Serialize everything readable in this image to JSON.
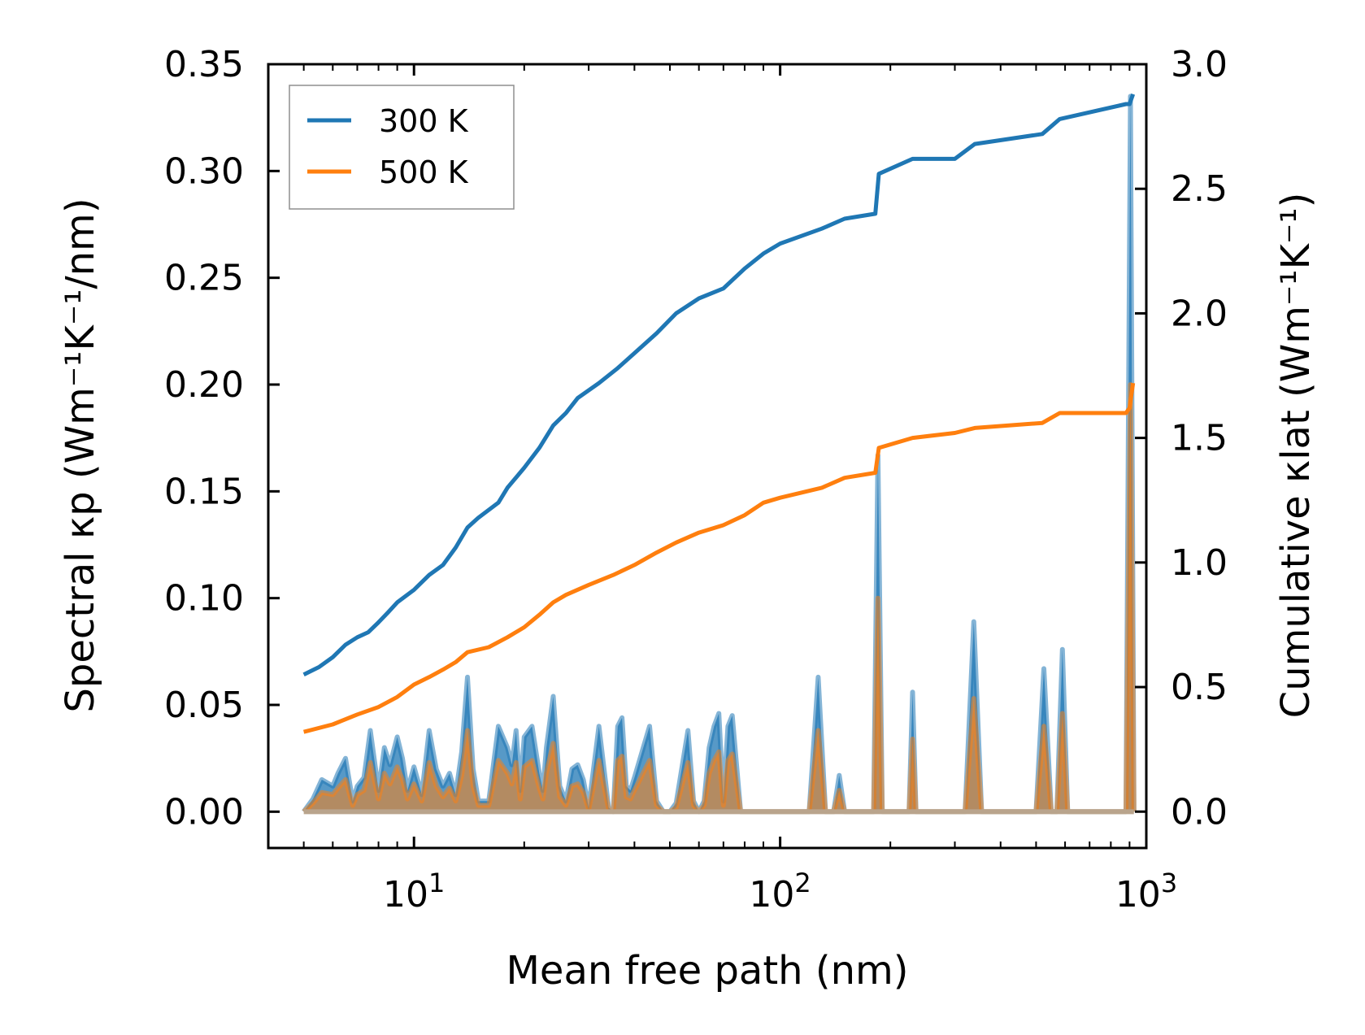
{
  "chart_data": {
    "type": "line",
    "xlabel": "Mean free path (nm)",
    "ylabel_left": "Spectral κp (Wm⁻¹K⁻¹/nm)",
    "ylabel_right": "Cumulative κlat (Wm⁻¹K⁻¹)",
    "x_scale": "log",
    "xlim": [
      4.0,
      1000
    ],
    "ylim_left": [
      -0.017,
      0.35
    ],
    "ylim_right": [
      -0.146,
      3.0
    ],
    "x_ticks": [
      10,
      100,
      1000
    ],
    "x_tick_labels": [
      {
        "base": "10",
        "exp": "1"
      },
      {
        "base": "10",
        "exp": "2"
      },
      {
        "base": "10",
        "exp": "3"
      }
    ],
    "y_ticks_left": [
      "0.00",
      "0.05",
      "0.10",
      "0.15",
      "0.20",
      "0.25",
      "0.30",
      "0.35"
    ],
    "y_ticks_right": [
      "0.0",
      "0.5",
      "1.0",
      "1.5",
      "2.0",
      "2.5",
      "3.0"
    ],
    "legend": {
      "position": "top-left",
      "entries": [
        {
          "label": "300 K",
          "color": "#1f77b4"
        },
        {
          "label": "500 K",
          "color": "#ff7f0e"
        }
      ]
    },
    "cumulative_series": [
      {
        "name": "300 K",
        "color": "#1f77b4",
        "axis": "right",
        "x": [
          5.0,
          5.5,
          6.0,
          6.5,
          7.0,
          7.5,
          8.0,
          8.5,
          9.0,
          10.0,
          11.0,
          12.0,
          13.0,
          14.0,
          15.0,
          17.0,
          18.0,
          20.0,
          22.0,
          24.0,
          26.0,
          28.0,
          32.0,
          36.0,
          40.0,
          46.0,
          52.0,
          60.0,
          70.0,
          80.0,
          90.0,
          100.0,
          130.0,
          150.0,
          182.0,
          186.0,
          230.0,
          300.0,
          340.0,
          520.0,
          580.0,
          880.0,
          900.0,
          920.0
        ],
        "y": [
          0.55,
          0.58,
          0.62,
          0.67,
          0.7,
          0.72,
          0.76,
          0.8,
          0.84,
          0.89,
          0.95,
          0.99,
          1.06,
          1.14,
          1.18,
          1.24,
          1.3,
          1.38,
          1.46,
          1.55,
          1.6,
          1.66,
          1.72,
          1.78,
          1.84,
          1.92,
          2.0,
          2.06,
          2.1,
          2.18,
          2.24,
          2.28,
          2.34,
          2.38,
          2.4,
          2.56,
          2.62,
          2.62,
          2.68,
          2.72,
          2.78,
          2.84,
          2.84,
          2.88
        ]
      },
      {
        "name": "500 K",
        "color": "#ff7f0e",
        "axis": "right",
        "x": [
          5.0,
          6.0,
          7.0,
          8.0,
          9.0,
          10.0,
          11.0,
          12.0,
          13.0,
          14.0,
          16.0,
          18.0,
          20.0,
          22.0,
          24.0,
          26.0,
          30.0,
          35.0,
          40.0,
          46.0,
          52.0,
          60.0,
          70.0,
          80.0,
          90.0,
          100.0,
          130.0,
          150.0,
          182.0,
          186.0,
          230.0,
          300.0,
          340.0,
          520.0,
          580.0,
          880.0,
          900.0,
          920.0
        ],
        "y": [
          0.32,
          0.35,
          0.39,
          0.42,
          0.46,
          0.51,
          0.54,
          0.57,
          0.6,
          0.64,
          0.66,
          0.7,
          0.74,
          0.79,
          0.84,
          0.87,
          0.91,
          0.95,
          0.99,
          1.04,
          1.08,
          1.12,
          1.15,
          1.19,
          1.24,
          1.26,
          1.3,
          1.34,
          1.36,
          1.46,
          1.5,
          1.52,
          1.54,
          1.56,
          1.6,
          1.6,
          1.62,
          1.72
        ]
      }
    ],
    "spectral_series": [
      {
        "name": "300 K",
        "color": "#1f77b4",
        "axis": "left",
        "x": [
          5.0,
          5.3,
          5.6,
          6.0,
          6.2,
          6.5,
          6.8,
          7.0,
          7.3,
          7.6,
          8.0,
          8.3,
          8.6,
          9.0,
          9.3,
          9.6,
          10.0,
          10.5,
          11.0,
          11.5,
          12.0,
          12.5,
          13.0,
          13.5,
          14.0,
          14.5,
          15.0,
          16.0,
          17.0,
          18.0,
          18.5,
          19.0,
          19.5,
          20.0,
          21.0,
          22.0,
          22.5,
          23.0,
          24.0,
          25.0,
          26.0,
          27.0,
          28.0,
          29.0,
          30.0,
          32.0,
          34.0,
          35.0,
          36.0,
          37.0,
          38.0,
          39.0,
          40.0,
          44.0,
          46.0,
          48.0,
          50.0,
          52.0,
          56.0,
          58.0,
          60.0,
          62.0,
          64.0,
          66.0,
          68.0,
          70.0,
          72.0,
          74.0,
          78.0,
          80.0,
          82.0,
          84.0,
          86.0,
          88.0,
          92.0,
          96.0,
          100.0,
          104.0,
          120.0,
          127.0,
          133.0,
          140.0,
          145.0,
          150.0,
          155.0,
          165.0,
          180.0,
          185.0,
          190.0,
          210.0,
          225.0,
          230.0,
          235.0,
          250.0,
          320.0,
          338.0,
          355.0,
          500.0,
          525.0,
          550.0,
          570.0,
          590.0,
          610.0,
          880.0,
          905.0,
          925.0
        ],
        "y": [
          0.0,
          0.006,
          0.015,
          0.012,
          0.018,
          0.025,
          0.005,
          0.012,
          0.016,
          0.038,
          0.01,
          0.03,
          0.022,
          0.035,
          0.025,
          0.01,
          0.021,
          0.008,
          0.038,
          0.02,
          0.012,
          0.018,
          0.008,
          0.028,
          0.063,
          0.02,
          0.005,
          0.005,
          0.04,
          0.03,
          0.022,
          0.038,
          0.01,
          0.035,
          0.04,
          0.018,
          0.01,
          0.03,
          0.054,
          0.012,
          0.005,
          0.02,
          0.022,
          0.015,
          0.002,
          0.04,
          0.002,
          0.0,
          0.04,
          0.044,
          0.012,
          0.01,
          0.016,
          0.04,
          0.005,
          0.0,
          0.0,
          0.004,
          0.038,
          0.005,
          0.0,
          0.005,
          0.03,
          0.04,
          0.046,
          0.005,
          0.04,
          0.045,
          0.0,
          0.0,
          0.0,
          0.0,
          0.0,
          0.0,
          0.0,
          0.0,
          0.0,
          0.0,
          0.0,
          0.063,
          0.0,
          0.0,
          0.017,
          0.0,
          0.0,
          0.0,
          0.0,
          0.167,
          0.0,
          0.0,
          0.0,
          0.056,
          0.0,
          0.0,
          0.0,
          0.089,
          0.0,
          0.0,
          0.067,
          0.0,
          0.0,
          0.076,
          0.0,
          0.0,
          0.335,
          0.0
        ]
      },
      {
        "name": "500 K",
        "color": "#ff7f0e",
        "axis": "left",
        "x": [
          5.0,
          5.3,
          5.6,
          6.0,
          6.2,
          6.5,
          6.8,
          7.0,
          7.3,
          7.6,
          8.0,
          8.3,
          8.6,
          9.0,
          9.3,
          9.6,
          10.0,
          10.5,
          11.0,
          11.5,
          12.0,
          12.5,
          13.0,
          13.5,
          14.0,
          14.5,
          15.0,
          16.0,
          17.0,
          18.0,
          18.5,
          19.0,
          19.5,
          20.0,
          21.0,
          22.0,
          22.5,
          23.0,
          24.0,
          25.0,
          26.0,
          27.0,
          28.0,
          29.0,
          30.0,
          32.0,
          34.0,
          35.0,
          36.0,
          37.0,
          38.0,
          39.0,
          40.0,
          44.0,
          46.0,
          48.0,
          50.0,
          52.0,
          56.0,
          58.0,
          60.0,
          62.0,
          64.0,
          66.0,
          68.0,
          70.0,
          72.0,
          74.0,
          78.0,
          80.0,
          82.0,
          84.0,
          86.0,
          88.0,
          92.0,
          96.0,
          100.0,
          104.0,
          120.0,
          127.0,
          133.0,
          140.0,
          145.0,
          150.0,
          155.0,
          165.0,
          180.0,
          185.0,
          190.0,
          210.0,
          225.0,
          230.0,
          235.0,
          250.0,
          320.0,
          338.0,
          355.0,
          500.0,
          525.0,
          550.0,
          570.0,
          590.0,
          610.0,
          880.0,
          905.0,
          925.0
        ],
        "y": [
          0.0,
          0.004,
          0.009,
          0.008,
          0.011,
          0.015,
          0.003,
          0.008,
          0.01,
          0.023,
          0.006,
          0.018,
          0.013,
          0.021,
          0.015,
          0.006,
          0.013,
          0.005,
          0.023,
          0.012,
          0.007,
          0.011,
          0.005,
          0.017,
          0.038,
          0.012,
          0.003,
          0.003,
          0.024,
          0.018,
          0.013,
          0.023,
          0.006,
          0.021,
          0.024,
          0.011,
          0.006,
          0.018,
          0.032,
          0.007,
          0.003,
          0.012,
          0.013,
          0.009,
          0.001,
          0.024,
          0.001,
          0.0,
          0.024,
          0.026,
          0.007,
          0.006,
          0.01,
          0.024,
          0.003,
          0.0,
          0.0,
          0.002,
          0.023,
          0.003,
          0.0,
          0.003,
          0.018,
          0.024,
          0.028,
          0.003,
          0.024,
          0.027,
          0.0,
          0.0,
          0.0,
          0.0,
          0.0,
          0.0,
          0.0,
          0.0,
          0.0,
          0.0,
          0.0,
          0.038,
          0.0,
          0.0,
          0.01,
          0.0,
          0.0,
          0.0,
          0.0,
          0.1,
          0.0,
          0.0,
          0.0,
          0.034,
          0.0,
          0.0,
          0.0,
          0.053,
          0.0,
          0.0,
          0.04,
          0.0,
          0.0,
          0.046,
          0.0,
          0.0,
          0.2,
          0.0
        ]
      }
    ]
  }
}
